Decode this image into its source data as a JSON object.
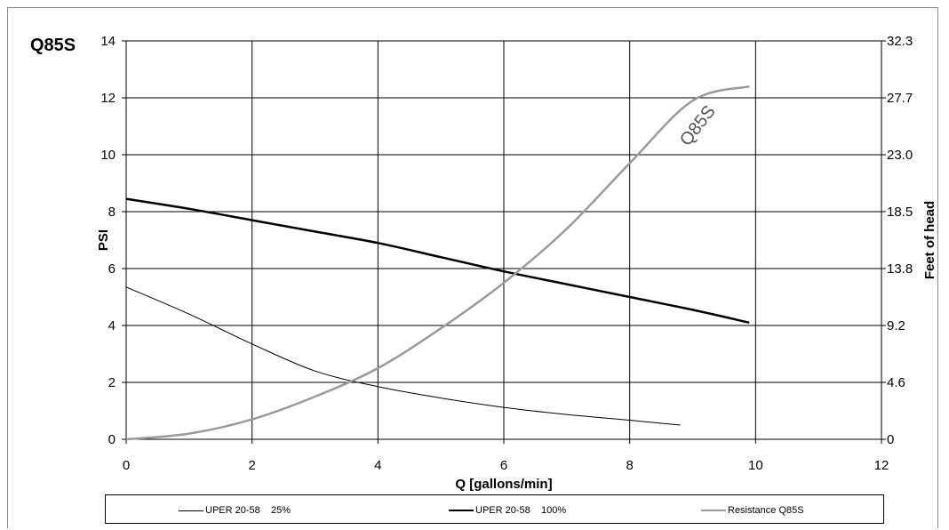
{
  "chart_data": {
    "type": "line",
    "title": "Q85S",
    "xlabel": "Q [gallons/min]",
    "ylabel": "PSI",
    "y2label": "Feet of head",
    "xlim": [
      0,
      12
    ],
    "ylim": [
      0,
      14
    ],
    "x_ticks": [
      "0",
      "2",
      "4",
      "6",
      "8",
      "10",
      "12"
    ],
    "y_ticks": [
      "0",
      "2",
      "4",
      "6",
      "8",
      "10",
      "12",
      "14"
    ],
    "y2_ticks": [
      "0",
      "4.6",
      "9.2",
      "13.8",
      "18.5",
      "23.0",
      "27.7",
      "32.3"
    ],
    "grid": true,
    "legend_position": "bottom",
    "series": [
      {
        "name": "UPER 20-58    25%",
        "color": "#000000",
        "width": 1,
        "points": [
          [
            0,
            5.35
          ],
          [
            1,
            4.4
          ],
          [
            2,
            3.35
          ],
          [
            3,
            2.4
          ],
          [
            4,
            1.85
          ],
          [
            5,
            1.45
          ],
          [
            6,
            1.12
          ],
          [
            7,
            0.87
          ],
          [
            8,
            0.67
          ],
          [
            8.8,
            0.5
          ]
        ]
      },
      {
        "name": "UPER 20-58    100%",
        "color": "#000000",
        "width": 2.5,
        "points": [
          [
            0,
            8.45
          ],
          [
            1,
            8.1
          ],
          [
            2,
            7.7
          ],
          [
            3,
            7.3
          ],
          [
            4,
            6.9
          ],
          [
            5,
            6.4
          ],
          [
            6,
            5.9
          ],
          [
            7,
            5.45
          ],
          [
            8,
            5.0
          ],
          [
            9,
            4.55
          ],
          [
            9.9,
            4.1
          ]
        ]
      },
      {
        "name": "Resistance Q85S",
        "color": "#9a9a9a",
        "width": 2.5,
        "points": [
          [
            0,
            0.0
          ],
          [
            1,
            0.2
          ],
          [
            2,
            0.7
          ],
          [
            3,
            1.5
          ],
          [
            4,
            2.5
          ],
          [
            5,
            3.9
          ],
          [
            6,
            5.5
          ],
          [
            7,
            7.4
          ],
          [
            8,
            9.7
          ],
          [
            9,
            11.9
          ],
          [
            9.9,
            12.4
          ]
        ]
      }
    ],
    "annotations": [
      {
        "text": "Q85S",
        "x": 9.15,
        "y": 10.9,
        "color": "#555555"
      }
    ]
  }
}
